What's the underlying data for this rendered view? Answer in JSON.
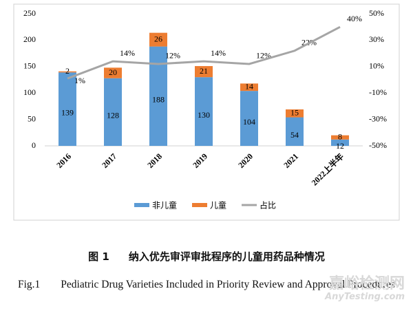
{
  "chart_data": {
    "type": "bar",
    "stacked": true,
    "categories": [
      "2016",
      "2017",
      "2018",
      "2019",
      "2020",
      "2021",
      "2022上半年"
    ],
    "series": [
      {
        "name": "非儿童",
        "color": "#5b9bd5",
        "values": [
          139,
          128,
          188,
          130,
          104,
          54,
          12
        ]
      },
      {
        "name": "儿童",
        "color": "#ed7d31",
        "values": [
          2,
          20,
          26,
          21,
          14,
          15,
          8
        ]
      },
      {
        "name": "占比",
        "color": "#a5a5a5",
        "type": "line",
        "axis": "y2",
        "values": [
          1,
          14,
          12,
          14,
          12,
          22,
          40
        ],
        "value_labels": [
          "1%",
          "14%",
          "12%",
          "14%",
          "12%",
          "22%",
          "40%"
        ]
      }
    ],
    "ylim": [
      0,
      250
    ],
    "yticks": [
      0,
      50,
      100,
      150,
      200,
      250
    ],
    "y2lim": [
      -50,
      50
    ],
    "y2ticks": [
      {
        "value": -50,
        "label": "-50%"
      },
      {
        "value": -30,
        "label": "-30%"
      },
      {
        "value": -10,
        "label": "-10%"
      },
      {
        "value": 10,
        "label": "10%"
      },
      {
        "value": 30,
        "label": "30%"
      },
      {
        "value": 50,
        "label": "50%"
      }
    ],
    "grid": false,
    "legend": "bottom"
  },
  "caption_cn": {
    "label": "图 1",
    "title": "纳入优先审评审批程序的儿童用药品种情况"
  },
  "caption_en": {
    "label": "Fig.1",
    "title": "Pediatric Drug Varieties Included in Priority Review and Approval Procedures"
  },
  "watermark": {
    "cn": "嘉峪检测网",
    "en": "AnyTesting.com"
  }
}
